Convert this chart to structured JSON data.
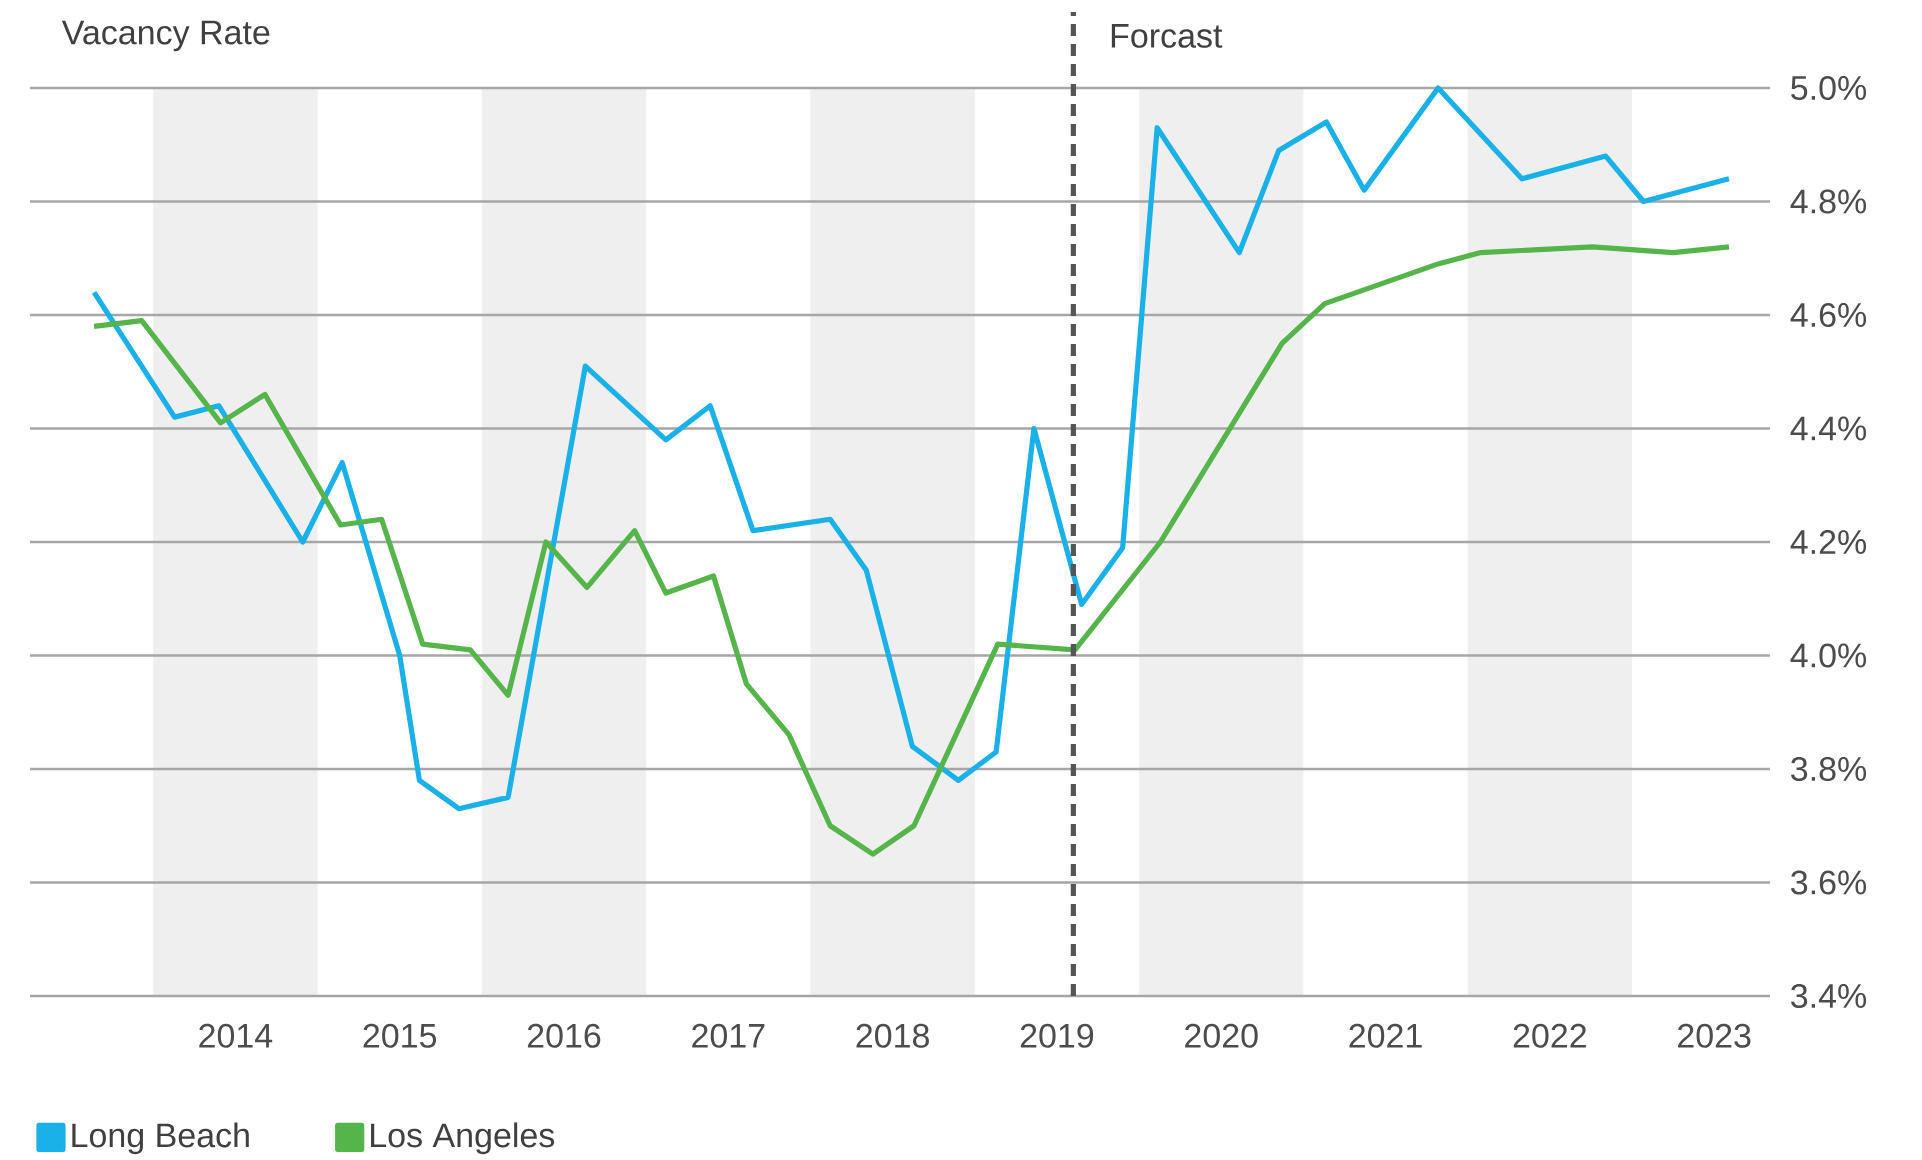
{
  "chart_data": {
    "type": "line",
    "title": "Vacancy Rate",
    "xlim": [
      2012.75,
      2023.34
    ],
    "ylim": [
      3.4,
      5.0
    ],
    "xticks": [
      2014,
      2015,
      2016,
      2017,
      2018,
      2019,
      2020,
      2021,
      2022,
      2023
    ],
    "yticks": [
      {
        "value": 3.4,
        "label": "3.4%"
      },
      {
        "value": 3.6,
        "label": "3.6%"
      },
      {
        "value": 3.8,
        "label": "3.8%"
      },
      {
        "value": 4.0,
        "label": "4.0%"
      },
      {
        "value": 4.2,
        "label": "4.2%"
      },
      {
        "value": 4.4,
        "label": "4.4%"
      },
      {
        "value": 4.6,
        "label": "4.6%"
      },
      {
        "value": 4.8,
        "label": "4.8%"
      },
      {
        "value": 5.0,
        "label": "5.0%"
      }
    ],
    "grid": "y",
    "legend": "bottom left",
    "marker": "none",
    "line_style": "solid",
    "series": [
      {
        "name": "Long Beach",
        "color": "#1ab0e8",
        "x": [
          2013.14,
          2013.63,
          2013.9,
          2014.41,
          2014.65,
          2015.0,
          2015.12,
          2015.36,
          2015.66,
          2016.13,
          2016.62,
          2016.89,
          2017.15,
          2017.62,
          2017.84,
          2018.12,
          2018.4,
          2018.63,
          2018.86,
          2019.15,
          2019.4,
          2019.61,
          2020.11,
          2020.35,
          2020.64,
          2020.87,
          2021.32,
          2021.83,
          2022.34,
          2022.57,
          2023.09
        ],
        "values": [
          4.64,
          4.42,
          4.44,
          4.2,
          4.34,
          4.0,
          3.78,
          3.73,
          3.75,
          4.51,
          4.38,
          4.44,
          4.22,
          4.24,
          4.15,
          3.84,
          3.78,
          3.83,
          4.4,
          4.09,
          4.19,
          4.93,
          4.71,
          4.89,
          4.94,
          4.82,
          5.0,
          4.84,
          4.88,
          4.8,
          4.84
        ]
      },
      {
        "name": "Los Angeles",
        "color": "#55b54a",
        "x": [
          2013.14,
          2013.43,
          2013.91,
          2014.18,
          2014.64,
          2014.89,
          2015.14,
          2015.43,
          2015.66,
          2015.89,
          2016.14,
          2016.43,
          2016.62,
          2016.91,
          2017.11,
          2017.37,
          2017.62,
          2017.88,
          2018.13,
          2018.64,
          2019.11,
          2019.63,
          2020.37,
          2020.63,
          2021.32,
          2021.58,
          2022.26,
          2022.75,
          2023.09
        ],
        "values": [
          4.58,
          4.59,
          4.41,
          4.46,
          4.23,
          4.24,
          4.02,
          4.01,
          3.93,
          4.2,
          4.12,
          4.22,
          4.11,
          4.14,
          3.95,
          3.86,
          3.7,
          3.65,
          3.7,
          4.02,
          4.01,
          4.2,
          4.55,
          4.62,
          4.69,
          4.71,
          4.72,
          4.71,
          4.72
        ]
      }
    ],
    "ref_lines": [
      {
        "axis": "x",
        "value": 2019.1,
        "label": "Forcast",
        "color": "#555555",
        "line_style": "dashed"
      }
    ],
    "bands": [
      {
        "axis": "x",
        "from": 2013.5,
        "to": 2014.5,
        "color": "#efefef"
      },
      {
        "axis": "x",
        "from": 2015.5,
        "to": 2016.5,
        "color": "#efefef"
      },
      {
        "axis": "x",
        "from": 2017.5,
        "to": 2018.5,
        "color": "#efefef"
      },
      {
        "axis": "x",
        "from": 2019.5,
        "to": 2020.5,
        "color": "#efefef"
      },
      {
        "axis": "x",
        "from": 2021.5,
        "to": 2022.5,
        "color": "#efefef"
      }
    ]
  }
}
